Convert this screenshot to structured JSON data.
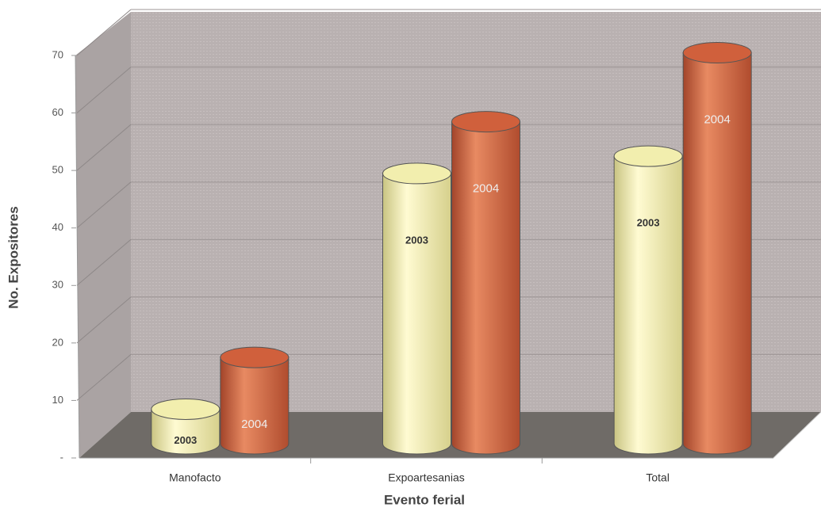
{
  "chart_data": {
    "type": "bar3d",
    "x_label": "Evento ferial",
    "y_label": "No. Expositores",
    "categories": [
      "Manofacto",
      "Expoartesanias",
      "Total"
    ],
    "series": [
      {
        "name": "2003",
        "color": "#f2eeae",
        "values": [
          6,
          47,
          50
        ]
      },
      {
        "name": "2004",
        "color": "#d0603c",
        "values": [
          15,
          56,
          68
        ]
      }
    ],
    "ylim": [
      0,
      70
    ],
    "yticks": [
      {
        "value": 0,
        "label": "-"
      },
      10,
      20,
      30,
      40,
      50,
      60,
      70
    ],
    "grid": true
  }
}
